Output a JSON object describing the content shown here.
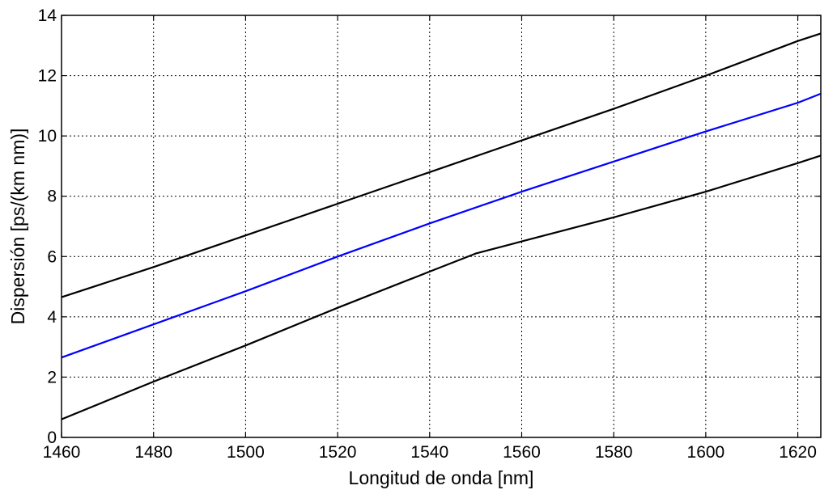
{
  "chart_data": {
    "type": "line",
    "title": "",
    "xlabel": "Longitud de onda [nm]",
    "ylabel": "Dispersión [ps/(km nm)]",
    "xlim": [
      1460,
      1625
    ],
    "ylim": [
      0,
      14
    ],
    "xticks": [
      1460,
      1480,
      1500,
      1520,
      1540,
      1560,
      1580,
      1600,
      1620
    ],
    "yticks": [
      0,
      2,
      4,
      6,
      8,
      10,
      12,
      14
    ],
    "xtick_labels": [
      "1460",
      "1480",
      "1500",
      "1520",
      "1540",
      "1560",
      "1580",
      "1600",
      "1620"
    ],
    "ytick_labels": [
      "0",
      "2",
      "4",
      "6",
      "8",
      "10",
      "12",
      "14"
    ],
    "grid": true,
    "legend": "none",
    "series": [
      {
        "color": "#000000",
        "x": [
          1460,
          1480,
          1500,
          1520,
          1540,
          1560,
          1580,
          1600,
          1620,
          1625
        ],
        "values": [
          4.65,
          5.65,
          6.7,
          7.75,
          8.8,
          9.85,
          10.9,
          12.0,
          13.15,
          13.4
        ]
      },
      {
        "color": "#0000ff",
        "x": [
          1460,
          1480,
          1500,
          1520,
          1540,
          1560,
          1580,
          1600,
          1620,
          1625
        ],
        "values": [
          2.65,
          3.75,
          4.85,
          6.0,
          7.1,
          8.15,
          9.15,
          10.15,
          11.1,
          11.4
        ]
      },
      {
        "color": "#000000",
        "x": [
          1460,
          1480,
          1500,
          1520,
          1540,
          1550,
          1560,
          1580,
          1600,
          1620,
          1625
        ],
        "values": [
          0.6,
          1.85,
          3.05,
          4.3,
          5.5,
          6.1,
          6.5,
          7.3,
          8.15,
          9.1,
          9.35
        ]
      }
    ]
  }
}
